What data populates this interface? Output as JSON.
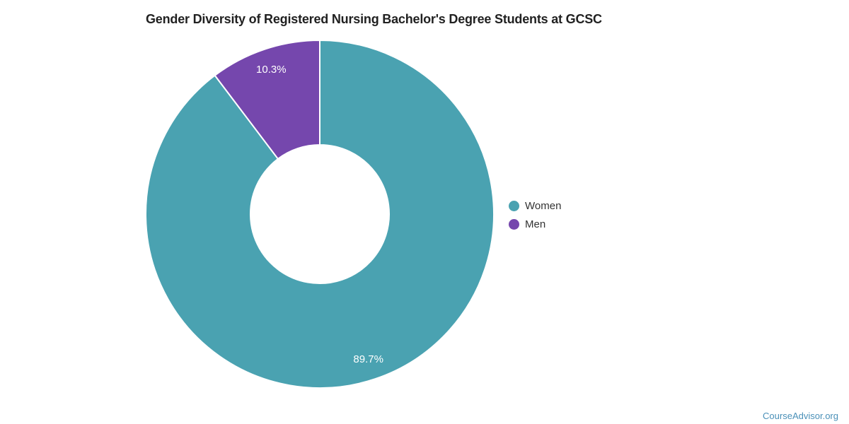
{
  "title": "Gender Diversity of Registered Nursing Bachelor's Degree Students at GCSC",
  "watermark": "CourseAdvisor.org",
  "colors": {
    "women_teal": "#4aa2b1",
    "men_purple": "#7547ad",
    "title_text": "#212121",
    "legend_text": "#333333",
    "slice_label_text": "#ffffff",
    "slice_divider": "#ffffff",
    "watermark_text": "#4a90b8",
    "background": "#ffffff"
  },
  "chart_data": {
    "type": "pie",
    "subtype": "donut",
    "title": "Gender Diversity of Registered Nursing Bachelor's Degree Students at GCSC",
    "categories": [
      "Women",
      "Men"
    ],
    "values": [
      89.7,
      10.3
    ],
    "data_labels": [
      "89.7%",
      "10.3%"
    ],
    "slice_colors": [
      "#4aa2b1",
      "#7547ad"
    ],
    "start_angle_deg": 0,
    "direction": "clockwise",
    "inner_radius_ratio": 0.4,
    "legend_position": "right",
    "legend_entries": [
      "Women",
      "Men"
    ]
  },
  "legend": {
    "items": [
      {
        "label": "Women",
        "color": "#4aa2b1"
      },
      {
        "label": "Men",
        "color": "#7547ad"
      }
    ]
  }
}
